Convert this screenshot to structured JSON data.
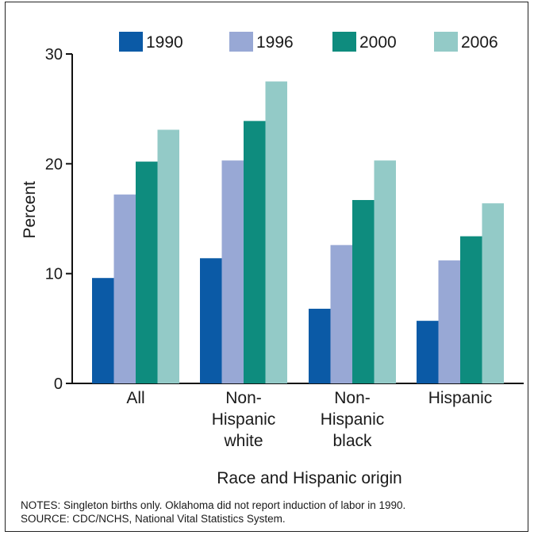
{
  "chart_data": {
    "type": "bar",
    "categories": [
      [
        "All"
      ],
      [
        "Non-",
        "Hispanic",
        "white"
      ],
      [
        "Non-",
        "Hispanic",
        "black"
      ],
      [
        "Hispanic"
      ]
    ],
    "series": [
      {
        "name": "1990",
        "color": "#0b5aa6",
        "values": [
          9.6,
          11.4,
          6.8,
          5.7
        ]
      },
      {
        "name": "1996",
        "color": "#98a8d5",
        "values": [
          17.2,
          20.3,
          12.6,
          11.2
        ]
      },
      {
        "name": "2000",
        "color": "#0e8c7e",
        "values": [
          20.2,
          23.9,
          16.7,
          13.4
        ]
      },
      {
        "name": "2006",
        "color": "#93cac7",
        "values": [
          23.1,
          27.5,
          20.3,
          16.4
        ]
      }
    ],
    "ylabel": "Percent",
    "xlabel": "Race and Hispanic origin",
    "ylim": [
      0,
      30
    ],
    "yticks": [
      0,
      10,
      20,
      30
    ],
    "legend_position": "top",
    "grid": false
  },
  "notes": {
    "line1": "NOTES: Singleton births only.  Oklahoma did not report induction of labor in 1990.",
    "line2": "SOURCE: CDC/NCHS, National Vital Statistics System."
  }
}
